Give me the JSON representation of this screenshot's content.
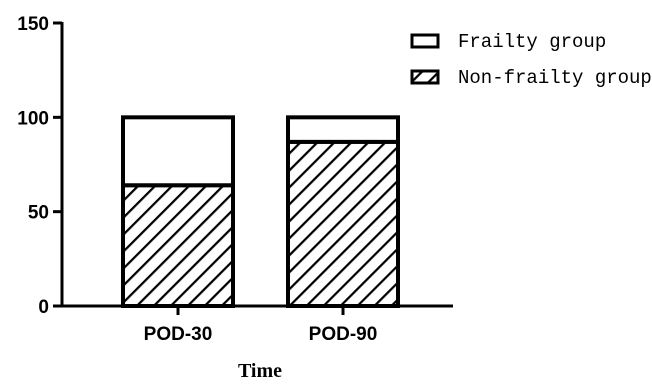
{
  "chart_data": {
    "type": "bar",
    "stacked": true,
    "title": "",
    "xlabel": "Time",
    "ylabel": "",
    "ylim": [
      0,
      150
    ],
    "yticks": [
      0,
      50,
      100,
      150
    ],
    "categories": [
      "POD-30",
      "POD-90"
    ],
    "series": [
      {
        "name": "Non-frailty group",
        "values": [
          64,
          87
        ],
        "pattern": "diagonal-hatch",
        "color": "#000000"
      },
      {
        "name": "Frailty group",
        "values": [
          36,
          13
        ],
        "pattern": "none",
        "color": "#ffffff"
      }
    ],
    "legend_position": "top-right",
    "grid": false
  }
}
